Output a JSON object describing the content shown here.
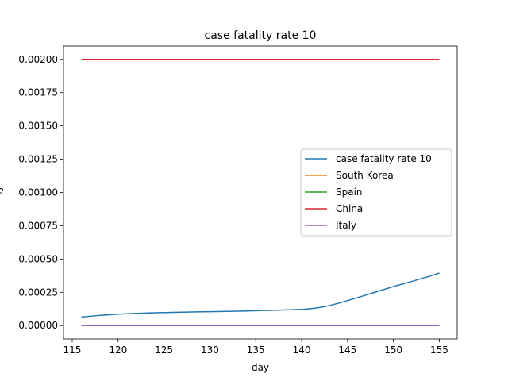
{
  "chart_data": {
    "type": "line",
    "title": "case fatality rate 10",
    "xlabel": "day",
    "ylabel": "%",
    "xlim": [
      114.05,
      156.95
    ],
    "ylim": [
      -0.0001,
      0.0021
    ],
    "xticks": [
      115,
      120,
      125,
      130,
      135,
      140,
      145,
      150,
      155
    ],
    "xtick_labels": [
      "115",
      "120",
      "125",
      "130",
      "135",
      "140",
      "145",
      "150",
      "155"
    ],
    "yticks": [
      0,
      0.00025,
      0.0005,
      0.00075,
      0.001,
      0.00125,
      0.0015,
      0.00175,
      0.002
    ],
    "ytick_labels": [
      "0.00000",
      "0.00025",
      "0.00050",
      "0.00075",
      "0.00100",
      "0.00125",
      "0.00150",
      "0.00175",
      "0.00200"
    ],
    "grid": false,
    "legend_position": "center-right",
    "series": [
      {
        "name": "case fatality rate 10",
        "color": "#1f77b4",
        "x": [
          116,
          118,
          120,
          122,
          124,
          126,
          128,
          130,
          132,
          134,
          136,
          138,
          140,
          141,
          142,
          143,
          144,
          146,
          148,
          150,
          152,
          154,
          155
        ],
        "y": [
          6.5e-05,
          7.7e-05,
          8.6e-05,
          9.2e-05,
          9.7e-05,
          0.0001,
          0.000103,
          0.000105,
          0.000107,
          0.00011,
          0.000114,
          0.000118,
          0.000122,
          0.000127,
          0.000136,
          0.00015,
          0.000168,
          0.000208,
          0.000251,
          0.000293,
          0.000332,
          0.000372,
          0.000395
        ]
      },
      {
        "name": "South Korea",
        "color": "#ff7f0e",
        "x": [
          116,
          155
        ],
        "y": [
          0,
          0
        ]
      },
      {
        "name": "Spain",
        "color": "#2ca02c",
        "x": [
          116,
          155
        ],
        "y": [
          0,
          0
        ]
      },
      {
        "name": "China",
        "color": "#d62728",
        "x": [
          116,
          155
        ],
        "y": [
          0.002,
          0.002
        ]
      },
      {
        "name": "Italy",
        "color": "#9467bd",
        "x": [
          116,
          155
        ],
        "y": [
          0,
          0
        ]
      }
    ]
  }
}
